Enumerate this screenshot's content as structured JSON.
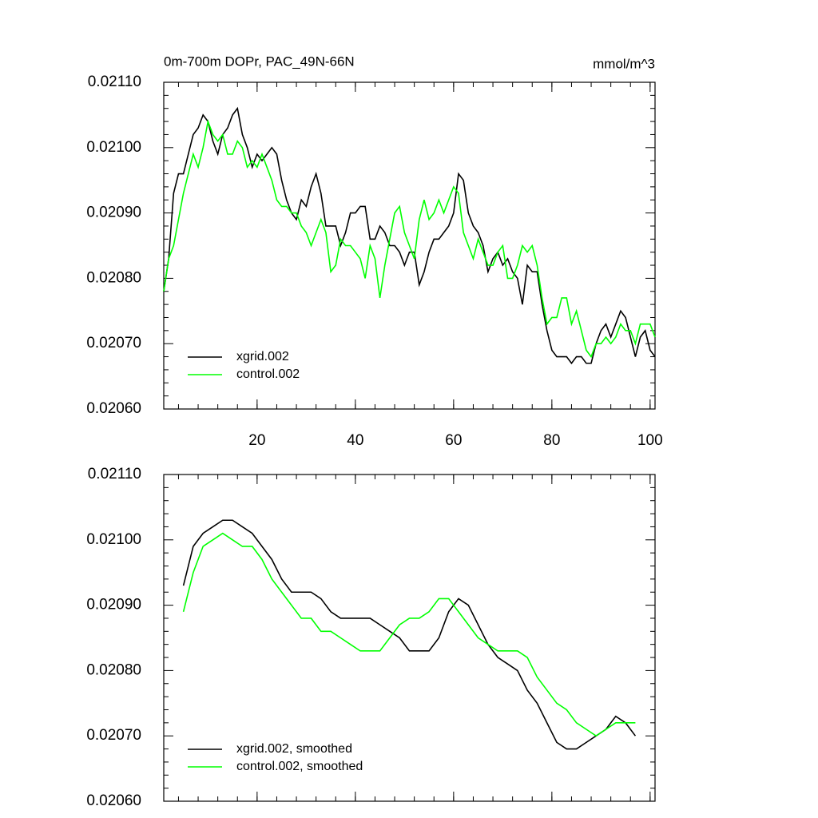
{
  "chart_data": [
    {
      "type": "line",
      "title": "0m-700m DOPr, PAC_49N-66N",
      "units": "mmol/m^3",
      "x": [
        1,
        2,
        3,
        4,
        5,
        6,
        7,
        8,
        9,
        10,
        11,
        12,
        13,
        14,
        15,
        16,
        17,
        18,
        19,
        20,
        21,
        22,
        23,
        24,
        25,
        26,
        27,
        28,
        29,
        30,
        31,
        32,
        33,
        34,
        35,
        36,
        37,
        38,
        39,
        40,
        41,
        42,
        43,
        44,
        45,
        46,
        47,
        48,
        49,
        50,
        51,
        52,
        53,
        54,
        55,
        56,
        57,
        58,
        59,
        60,
        61,
        62,
        63,
        64,
        65,
        66,
        67,
        68,
        69,
        70,
        71,
        72,
        73,
        74,
        75,
        76,
        77,
        78,
        79,
        80,
        81,
        82,
        83,
        84,
        85,
        86,
        87,
        88,
        89,
        90,
        91,
        92,
        93,
        94,
        95,
        96,
        97,
        98,
        99,
        100,
        101
      ],
      "series": [
        {
          "name": "xgrid.002",
          "color": "#000000",
          "values": [
            0.02078,
            0.02083,
            0.02093,
            0.02096,
            0.02096,
            0.02099,
            0.02102,
            0.02103,
            0.02105,
            0.02104,
            0.02101,
            0.02099,
            0.02102,
            0.02103,
            0.02105,
            0.02106,
            0.02102,
            0.021,
            0.02097,
            0.02099,
            0.02098,
            0.02099,
            0.021,
            0.02099,
            0.02095,
            0.02092,
            0.0209,
            0.02089,
            0.02092,
            0.02091,
            0.02094,
            0.02096,
            0.02093,
            0.02088,
            0.02088,
            0.02088,
            0.02085,
            0.02087,
            0.0209,
            0.0209,
            0.02091,
            0.02091,
            0.02086,
            0.02086,
            0.02088,
            0.02087,
            0.02085,
            0.02085,
            0.02084,
            0.02082,
            0.02084,
            0.02084,
            0.02079,
            0.02081,
            0.02084,
            0.02086,
            0.02086,
            0.02087,
            0.02088,
            0.0209,
            0.02096,
            0.02095,
            0.0209,
            0.02088,
            0.02087,
            0.02085,
            0.02081,
            0.02083,
            0.02084,
            0.02082,
            0.02083,
            0.02081,
            0.0208,
            0.02076,
            0.02082,
            0.02081,
            0.02081,
            0.02076,
            0.02072,
            0.02069,
            0.02068,
            0.02068,
            0.02068,
            0.02067,
            0.02068,
            0.02068,
            0.02067,
            0.02067,
            0.0207,
            0.02072,
            0.02073,
            0.02071,
            0.02073,
            0.02075,
            0.02074,
            0.02071,
            0.02068,
            0.02071,
            0.02072,
            0.02069,
            0.02068
          ]
        },
        {
          "name": "control.002",
          "color": "#00ff00",
          "values": [
            0.02078,
            0.02083,
            0.02085,
            0.02089,
            0.02093,
            0.02096,
            0.02099,
            0.02097,
            0.021,
            0.02104,
            0.02102,
            0.02101,
            0.02102,
            0.02099,
            0.02099,
            0.02101,
            0.021,
            0.02097,
            0.02098,
            0.02097,
            0.02099,
            0.02097,
            0.02095,
            0.02092,
            0.02091,
            0.02091,
            0.0209,
            0.0209,
            0.02088,
            0.02087,
            0.02085,
            0.02087,
            0.02089,
            0.02087,
            0.02081,
            0.02082,
            0.02086,
            0.02085,
            0.02085,
            0.02084,
            0.02083,
            0.0208,
            0.02085,
            0.02083,
            0.02077,
            0.02082,
            0.02086,
            0.0209,
            0.02091,
            0.02087,
            0.02085,
            0.02083,
            0.02089,
            0.02092,
            0.02089,
            0.0209,
            0.02092,
            0.0209,
            0.02092,
            0.02094,
            0.02093,
            0.02087,
            0.02085,
            0.02083,
            0.02086,
            0.02084,
            0.02082,
            0.02082,
            0.02084,
            0.02085,
            0.0208,
            0.0208,
            0.02082,
            0.02085,
            0.02084,
            0.02085,
            0.02082,
            0.02077,
            0.02073,
            0.02074,
            0.02074,
            0.02077,
            0.02077,
            0.02073,
            0.02075,
            0.02072,
            0.02069,
            0.02068,
            0.0207,
            0.0207,
            0.02071,
            0.0207,
            0.02071,
            0.02073,
            0.02072,
            0.02072,
            0.0207,
            0.02073,
            0.02073,
            0.02073,
            0.02071
          ]
        }
      ],
      "xlim": [
        1,
        101
      ],
      "xticks": [
        20,
        40,
        60,
        80,
        100
      ],
      "xtick_labels": true,
      "ylim": [
        0.0206,
        0.0211
      ],
      "yticks": [
        {
          "value": 0.0206,
          "label": "0.02060"
        },
        {
          "value": 0.0207,
          "label": "0.02070"
        },
        {
          "value": 0.0208,
          "label": "0.02080"
        },
        {
          "value": 0.0209,
          "label": "0.02090"
        },
        {
          "value": 0.021,
          "label": "0.02100"
        },
        {
          "value": 0.0211,
          "label": "0.02110"
        }
      ],
      "legend": "lower left"
    },
    {
      "type": "line",
      "x": [
        5,
        7,
        9,
        11,
        13,
        15,
        17,
        19,
        21,
        23,
        25,
        27,
        29,
        31,
        33,
        35,
        37,
        39,
        41,
        43,
        45,
        47,
        49,
        51,
        53,
        55,
        57,
        59,
        61,
        63,
        65,
        67,
        69,
        71,
        73,
        75,
        77,
        79,
        81,
        83,
        85,
        87,
        89,
        91,
        93,
        95,
        97
      ],
      "series": [
        {
          "name": "xgrid.002, smoothed",
          "color": "#000000",
          "values": [
            0.02093,
            0.02099,
            0.02101,
            0.02102,
            0.02103,
            0.02103,
            0.02102,
            0.02101,
            0.02099,
            0.02097,
            0.02094,
            0.02092,
            0.02092,
            0.02092,
            0.02091,
            0.02089,
            0.02088,
            0.02088,
            0.02088,
            0.02088,
            0.02087,
            0.02086,
            0.02085,
            0.02083,
            0.02083,
            0.02083,
            0.02085,
            0.02089,
            0.02091,
            0.0209,
            0.02087,
            0.02084,
            0.02082,
            0.02081,
            0.0208,
            0.02077,
            0.02075,
            0.02072,
            0.02069,
            0.02068,
            0.02068,
            0.02069,
            0.0207,
            0.02071,
            0.02073,
            0.02072,
            0.0207
          ]
        },
        {
          "name": "control.002, smoothed",
          "color": "#00ff00",
          "values": [
            0.02089,
            0.02095,
            0.02099,
            0.021,
            0.02101,
            0.021,
            0.02099,
            0.02099,
            0.02097,
            0.02094,
            0.02092,
            0.0209,
            0.02088,
            0.02088,
            0.02086,
            0.02086,
            0.02085,
            0.02084,
            0.02083,
            0.02083,
            0.02083,
            0.02085,
            0.02087,
            0.02088,
            0.02088,
            0.02089,
            0.02091,
            0.02091,
            0.02089,
            0.02087,
            0.02085,
            0.02084,
            0.02083,
            0.02083,
            0.02083,
            0.02082,
            0.02079,
            0.02077,
            0.02075,
            0.02074,
            0.02072,
            0.02071,
            0.0207,
            0.02071,
            0.02072,
            0.02072,
            0.02072
          ]
        }
      ],
      "xlim": [
        1,
        101
      ],
      "xticks": [
        20,
        40,
        60,
        80,
        100
      ],
      "xtick_labels": false,
      "ylim": [
        0.0206,
        0.0211
      ],
      "yticks": [
        {
          "value": 0.0206,
          "label": "0.02060"
        },
        {
          "value": 0.0207,
          "label": "0.02070"
        },
        {
          "value": 0.0208,
          "label": "0.02080"
        },
        {
          "value": 0.0209,
          "label": "0.02090"
        },
        {
          "value": 0.021,
          "label": "0.02100"
        },
        {
          "value": 0.0211,
          "label": "0.02110"
        }
      ],
      "legend": "lower left"
    }
  ]
}
